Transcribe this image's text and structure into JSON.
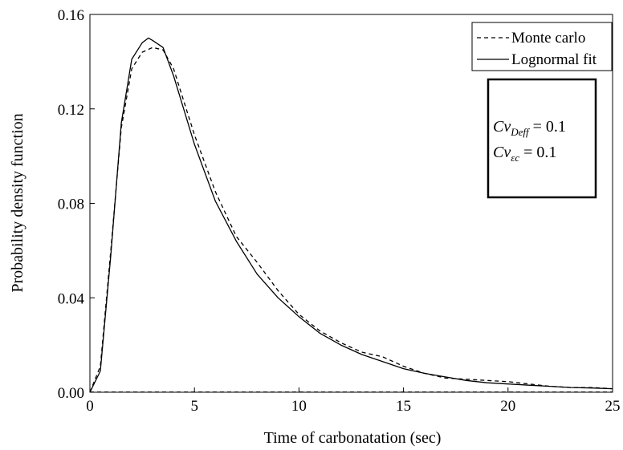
{
  "chart_data": {
    "type": "line",
    "title": "",
    "xlabel": "Time of carbonatation (sec)",
    "ylabel": "Probability density function",
    "xlim": [
      0,
      25
    ],
    "ylim": [
      0,
      0.16
    ],
    "xticks": [
      0,
      5,
      10,
      15,
      20,
      25
    ],
    "xtick_labels": [
      "0",
      "5",
      "10",
      "15",
      "20",
      "25"
    ],
    "yticks": [
      0,
      0.04,
      0.08,
      0.12,
      0.16
    ],
    "ytick_labels": [
      "0.00",
      "0.04",
      "0.08",
      "0.12",
      "0.16"
    ],
    "grid": false,
    "legend_position": "top-right",
    "series": [
      {
        "name": "Monte carlo",
        "style": "dashed",
        "color": "#000000",
        "x": [
          0,
          0.5,
          1.0,
          1.5,
          2.0,
          2.5,
          3.0,
          3.5,
          4.0,
          5.0,
          6.0,
          7.0,
          8.0,
          9.0,
          10.0,
          11.0,
          12.0,
          13.0,
          14.0,
          15.0,
          16.0,
          17.0,
          18.0,
          19.0,
          20.0,
          21.0,
          22.0,
          23.0,
          24.0,
          25.0
        ],
        "y": [
          0.0,
          0.011,
          0.06,
          0.112,
          0.137,
          0.144,
          0.146,
          0.145,
          0.137,
          0.109,
          0.085,
          0.066,
          0.055,
          0.043,
          0.033,
          0.026,
          0.021,
          0.017,
          0.015,
          0.011,
          0.008,
          0.006,
          0.0055,
          0.005,
          0.0045,
          0.0035,
          0.0025,
          0.002,
          0.002,
          0.0015
        ]
      },
      {
        "name": "Lognormal fit",
        "style": "solid",
        "color": "#000000",
        "x": [
          0,
          0.5,
          1.0,
          1.5,
          2.0,
          2.5,
          2.8,
          3.0,
          3.5,
          4.0,
          5.0,
          6.0,
          7.0,
          8.0,
          9.0,
          10.0,
          11.0,
          12.0,
          13.0,
          14.0,
          15.0,
          16.0,
          17.0,
          18.0,
          19.0,
          20.0,
          21.0,
          22.0,
          23.0,
          24.0,
          25.0
        ],
        "y": [
          0.0,
          0.009,
          0.058,
          0.114,
          0.141,
          0.148,
          0.15,
          0.149,
          0.146,
          0.134,
          0.105,
          0.081,
          0.064,
          0.05,
          0.04,
          0.032,
          0.025,
          0.02,
          0.016,
          0.013,
          0.01,
          0.008,
          0.0065,
          0.005,
          0.004,
          0.0035,
          0.003,
          0.0025,
          0.002,
          0.0018,
          0.0015
        ]
      }
    ],
    "annotation_lines": [
      {
        "base": "Cv",
        "subscript": "Deff",
        "rest": " = 0.1"
      },
      {
        "base": "Cv",
        "subscript": "εc",
        "rest": " = 0.1"
      }
    ]
  }
}
